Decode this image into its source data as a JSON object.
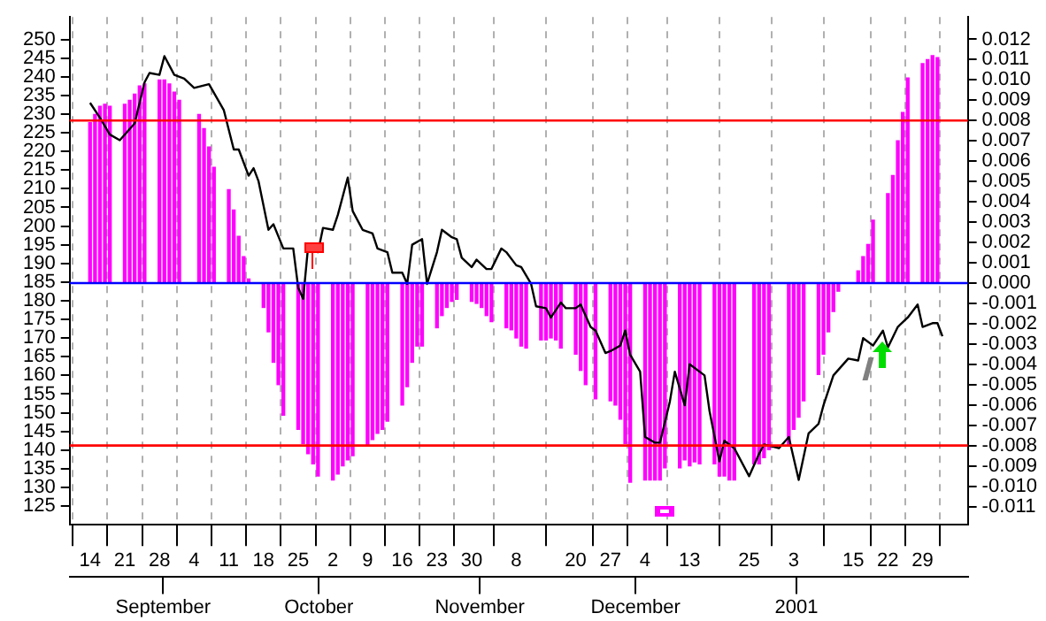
{
  "chart_data": {
    "type": "line",
    "grid": "x",
    "legend": false,
    "marker": "none",
    "xlim": [
      "2000-08-14",
      "2001-02-03"
    ],
    "xticks": [
      {
        "value": "2000-08-14",
        "label": "14"
      },
      {
        "value": "2000-08-21",
        "label": "21"
      },
      {
        "value": "2000-08-28",
        "label": "28"
      },
      {
        "value": "2000-09-04",
        "label": "4"
      },
      {
        "value": "2000-09-11",
        "label": "11"
      },
      {
        "value": "2000-09-18",
        "label": "18"
      },
      {
        "value": "2000-09-25",
        "label": "25"
      },
      {
        "value": "2000-10-02",
        "label": "2"
      },
      {
        "value": "2000-10-09",
        "label": "9"
      },
      {
        "value": "2000-10-16",
        "label": "16"
      },
      {
        "value": "2000-10-23",
        "label": "23"
      },
      {
        "value": "2000-10-30",
        "label": "30"
      },
      {
        "value": "2000-11-08",
        "label": "8"
      },
      {
        "value": "2000-11-20",
        "label": "20"
      },
      {
        "value": "2000-11-27",
        "label": "27"
      },
      {
        "value": "2000-12-04",
        "label": "4"
      },
      {
        "value": "2000-12-13",
        "label": "13"
      },
      {
        "value": "2000-12-25",
        "label": "25"
      },
      {
        "value": "2001-01-03",
        "label": "3"
      },
      {
        "value": "2001-01-15",
        "label": "15"
      },
      {
        "value": "2001-01-22",
        "label": "22"
      },
      {
        "value": "2001-01-29",
        "label": "29"
      }
    ],
    "x2lim": [
      "2000-08-14",
      "2001-02-03"
    ],
    "x2ticks": [
      {
        "value": "2000-09-01",
        "label": "September"
      },
      {
        "value": "2000-10-01",
        "label": "October"
      },
      {
        "value": "2000-11-01",
        "label": "November"
      },
      {
        "value": "2000-12-01",
        "label": "December"
      },
      {
        "value": "2001-01-01",
        "label": "2001"
      }
    ],
    "ylim": [
      120,
      256
    ],
    "yticks": [
      125,
      130,
      135,
      140,
      145,
      150,
      155,
      160,
      165,
      170,
      175,
      180,
      185,
      190,
      195,
      200,
      205,
      210,
      215,
      220,
      225,
      230,
      235,
      240,
      245,
      250
    ],
    "y2lim": [
      -0.0119,
      0.0131
    ],
    "y2ticks": [
      -0.011,
      {
        "value": -0.01,
        "label": "-0.010"
      },
      -0.009,
      -0.008,
      -0.007,
      -0.006,
      -0.005,
      -0.004,
      -0.003,
      -0.002,
      -0.001,
      {
        "value": 0,
        "label": "0.000"
      },
      0.001,
      0.002,
      0.003,
      0.004,
      0.005,
      0.006,
      0.007,
      0.008,
      0.009,
      {
        "value": 0.01,
        "label": "0.010"
      },
      0.011,
      0.012
    ],
    "ref_lines": [
      {
        "axis": "y2",
        "value": 0.008,
        "color": "#ff0000"
      },
      {
        "axis": "y2",
        "value": 0,
        "color": "#0000ff"
      },
      {
        "axis": "y2",
        "value": -0.008,
        "color": "#ff0000"
      }
    ],
    "series": [
      {
        "type": "bar",
        "axis": "y2",
        "color": "#ff00ff",
        "x": [
          "2000-08-14",
          "2000-08-15",
          "2000-08-16",
          "2000-08-17",
          "2000-08-18",
          "2000-08-21",
          "2000-08-22",
          "2000-08-23",
          "2000-08-24",
          "2000-08-25",
          "2000-08-28",
          "2000-08-29",
          "2000-08-30",
          "2000-08-31",
          "2000-09-01",
          "2000-09-05",
          "2000-09-06",
          "2000-09-07",
          "2000-09-08",
          "2000-09-11",
          "2000-09-12",
          "2000-09-13",
          "2000-09-14",
          "2000-09-15",
          "2000-09-18",
          "2000-09-19",
          "2000-09-20",
          "2000-09-21",
          "2000-09-22",
          "2000-09-25",
          "2000-09-26",
          "2000-09-27",
          "2000-09-28",
          "2000-09-29",
          "2000-10-02",
          "2000-10-03",
          "2000-10-04",
          "2000-10-05",
          "2000-10-06",
          "2000-10-09",
          "2000-10-10",
          "2000-10-11",
          "2000-10-12",
          "2000-10-13",
          "2000-10-16",
          "2000-10-17",
          "2000-10-18",
          "2000-10-19",
          "2000-10-20",
          "2000-10-23",
          "2000-10-24",
          "2000-10-25",
          "2000-10-26",
          "2000-10-27",
          "2000-10-30",
          "2000-10-31",
          "2000-11-01",
          "2000-11-02",
          "2000-11-03",
          "2000-11-06",
          "2000-11-07",
          "2000-11-08",
          "2000-11-09",
          "2000-11-10",
          "2000-11-13",
          "2000-11-14",
          "2000-11-15",
          "2000-11-16",
          "2000-11-17",
          "2000-11-20",
          "2000-11-21",
          "2000-11-22",
          "2000-11-24",
          "2000-11-27",
          "2000-11-28",
          "2000-11-29",
          "2000-11-30",
          "2000-12-01",
          "2000-12-04",
          "2000-12-05",
          "2000-12-06",
          "2000-12-07",
          "2000-12-08",
          "2000-12-11",
          "2000-12-12",
          "2000-12-13",
          "2000-12-14",
          "2000-12-15",
          "2000-12-18",
          "2000-12-19",
          "2000-12-20",
          "2000-12-21",
          "2000-12-22",
          "2000-12-26",
          "2000-12-27",
          "2000-12-28",
          "2000-12-29",
          "2001-01-02",
          "2001-01-03",
          "2001-01-04",
          "2001-01-05",
          "2001-01-08",
          "2001-01-09",
          "2001-01-10",
          "2001-01-11",
          "2001-01-12",
          "2001-01-16",
          "2001-01-17",
          "2001-01-18",
          "2001-01-19",
          "2001-01-22",
          "2001-01-23",
          "2001-01-24",
          "2001-01-25",
          "2001-01-26",
          "2001-01-29",
          "2001-01-30",
          "2001-01-31",
          "2001-02-01"
        ],
        "values": [
          0.0079,
          0.0083,
          0.0087,
          0.0088,
          0.0087,
          0.0088,
          0.009,
          0.0093,
          0.0097,
          0.0098,
          0.01,
          0.01,
          0.0098,
          0.0094,
          0.009,
          0.0083,
          0.0076,
          0.0067,
          0.0057,
          0.0046,
          0.0036,
          0.0023,
          0.0013,
          0.0002,
          -0.0012,
          -0.0024,
          -0.0039,
          -0.005,
          -0.0065,
          -0.0072,
          -0.0079,
          -0.0084,
          -0.0089,
          -0.0095,
          -0.0097,
          -0.0094,
          -0.009,
          -0.0087,
          -0.0085,
          -0.008,
          -0.0077,
          -0.0074,
          -0.0072,
          -0.0068,
          -0.006,
          -0.0051,
          -0.0039,
          -0.0031,
          -0.0031,
          -0.0022,
          -0.0016,
          -0.0012,
          -0.0009,
          -0.0008,
          -0.0009,
          -0.001,
          -0.0012,
          -0.0016,
          -0.0019,
          -0.0022,
          -0.0023,
          -0.0027,
          -0.0031,
          -0.0032,
          -0.0028,
          -0.0028,
          -0.0027,
          -0.0028,
          -0.0032,
          -0.0035,
          -0.0043,
          -0.005,
          -0.0057,
          -0.0058,
          -0.006,
          -0.0067,
          -0.0079,
          -0.0098,
          -0.0097,
          -0.0097,
          -0.0097,
          -0.0097,
          -0.0091,
          -0.0091,
          -0.0087,
          -0.009,
          -0.0088,
          -0.0089,
          -0.0089,
          -0.0095,
          -0.0095,
          -0.0097,
          -0.0097,
          -0.0089,
          -0.0089,
          -0.0086,
          -0.0082,
          -0.008,
          -0.0072,
          -0.0066,
          -0.0058,
          -0.0045,
          -0.0035,
          -0.0024,
          -0.0014,
          -0.0004,
          0.0006,
          0.0013,
          0.0019,
          0.0031,
          0.0044,
          0.0053,
          0.007,
          0.0084,
          0.0101,
          0.0108,
          0.011,
          0.0112,
          0.0111
        ]
      },
      {
        "color": "#000000",
        "x": [
          "2000-08-14",
          "2000-08-16",
          "2000-08-18",
          "2000-08-20",
          "2000-08-23",
          "2000-08-25",
          "2000-08-26",
          "2000-08-28",
          "2000-08-29",
          "2000-08-31",
          "2000-09-02",
          "2000-09-04",
          "2000-09-07",
          "2000-09-10",
          "2000-09-12",
          "2000-09-13",
          "2000-09-15",
          "2000-09-16",
          "2000-09-17",
          "2000-09-19",
          "2000-09-20",
          "2000-09-22",
          "2000-09-24",
          "2000-09-25",
          "2000-09-26",
          "2000-09-27",
          "2000-09-29",
          "2000-09-30",
          "2000-10-02",
          "2000-10-03",
          "2000-10-05",
          "2000-10-06",
          "2000-10-08",
          "2000-10-10",
          "2000-10-11",
          "2000-10-13",
          "2000-10-14",
          "2000-10-16",
          "2000-10-17",
          "2000-10-18",
          "2000-10-20",
          "2000-10-21",
          "2000-10-23",
          "2000-10-24",
          "2000-10-26",
          "2000-10-27",
          "2000-10-28",
          "2000-10-30",
          "2000-10-31",
          "2000-11-02",
          "2000-11-03",
          "2000-11-05",
          "2000-11-06",
          "2000-11-08",
          "2000-11-09",
          "2000-11-11",
          "2000-11-12",
          "2000-11-14",
          "2000-11-15",
          "2000-11-17",
          "2000-11-18",
          "2000-11-20",
          "2000-11-21",
          "2000-11-23",
          "2000-11-24",
          "2000-11-26",
          "2000-11-27",
          "2000-11-29",
          "2000-11-30",
          "2000-12-01",
          "2000-12-03",
          "2000-12-04",
          "2000-12-06",
          "2000-12-07",
          "2000-12-09",
          "2000-12-10",
          "2000-12-12",
          "2000-12-13",
          "2000-12-16",
          "2000-12-17",
          "2000-12-19",
          "2000-12-20",
          "2000-12-22",
          "2000-12-25",
          "2000-12-27",
          "2000-12-28",
          "2000-12-31",
          "2001-01-02",
          "2001-01-04",
          "2001-01-06",
          "2001-01-08",
          "2001-01-09",
          "2001-01-11",
          "2001-01-14",
          "2001-01-16",
          "2001-01-17",
          "2001-01-19",
          "2001-01-21",
          "2001-01-22",
          "2001-01-24",
          "2001-01-26",
          "2001-01-28",
          "2001-01-29",
          "2001-01-31",
          "2001-02-01",
          "2001-02-02"
        ],
        "values": [
          233,
          229,
          224.5,
          223,
          227.5,
          238.5,
          241,
          240.5,
          245.5,
          240.5,
          239.5,
          237,
          238,
          231,
          220.5,
          220.5,
          213.5,
          215.5,
          212,
          199,
          200.5,
          194,
          194,
          183.5,
          180.5,
          194.5,
          193,
          199.5,
          199,
          203,
          213,
          204,
          199,
          198,
          194,
          193,
          187.5,
          187.5,
          184.5,
          195,
          196.5,
          184.5,
          193,
          199,
          197,
          196.5,
          191.5,
          189,
          191,
          188.5,
          188.5,
          194,
          193,
          189.5,
          189,
          184.5,
          178.5,
          178,
          175.5,
          179.5,
          178,
          178,
          179,
          173,
          172,
          166,
          166.5,
          168,
          172,
          165.5,
          161,
          143.5,
          142,
          142,
          153,
          161,
          152,
          163,
          160,
          150.5,
          137,
          142.5,
          140.5,
          133,
          139,
          141.5,
          140.5,
          143.5,
          132,
          144.5,
          147,
          152,
          160,
          164.5,
          164,
          170,
          168,
          172,
          167.5,
          173,
          175.5,
          179,
          173,
          174,
          174,
          170.5
        ]
      }
    ]
  }
}
